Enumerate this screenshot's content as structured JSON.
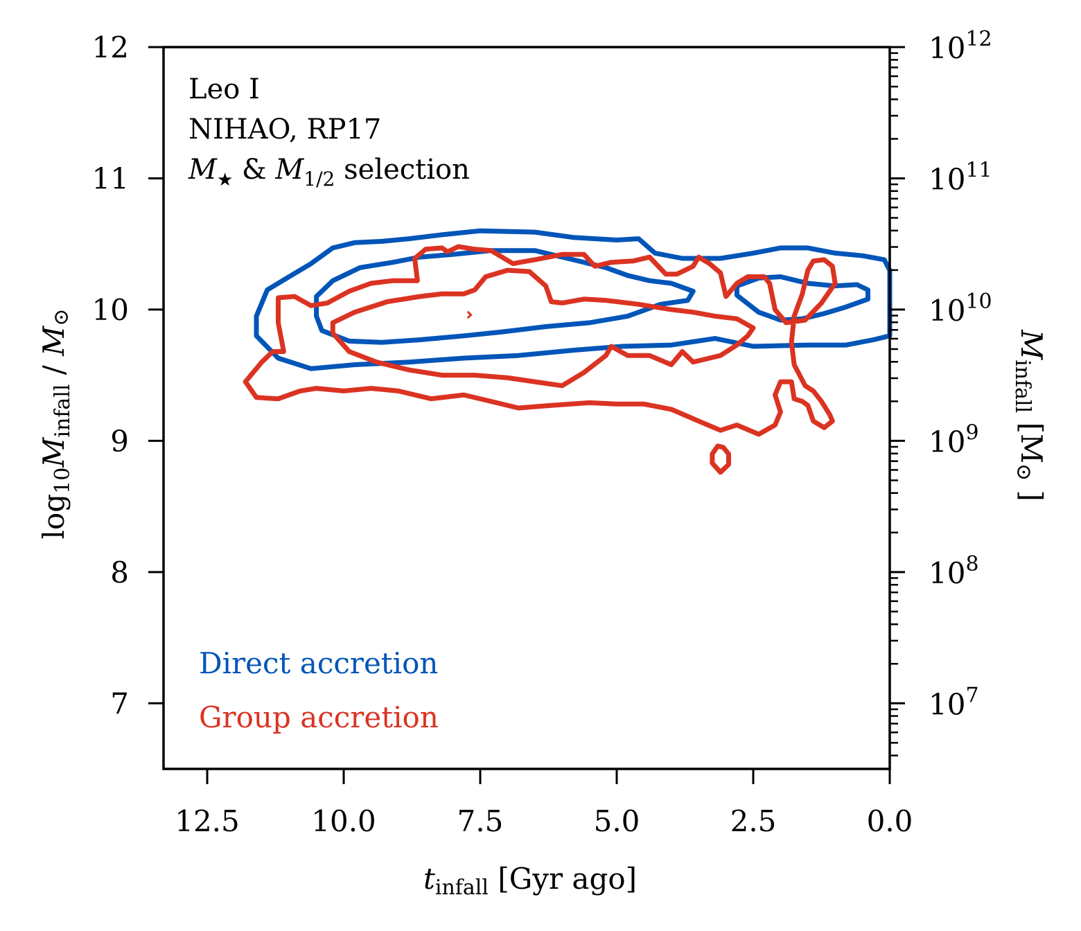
{
  "chart_data": {
    "type": "contour",
    "annotation": {
      "lines": [
        "Leo I",
        "NIHAO, RP17"
      ],
      "selection": {
        "m_star": "M",
        "star_sub": "★",
        "amp": " & ",
        "m_half": "M",
        "half_sub": "1/2",
        "rest": " selection"
      }
    },
    "xaxis": {
      "label_var": "t",
      "label_sub": "infall",
      "label_rest": " [Gyr ago]",
      "range": [
        13.3,
        0.0
      ],
      "reversed": true,
      "ticks": [
        12.5,
        10.0,
        7.5,
        5.0,
        2.5,
        0.0
      ],
      "tick_labels": [
        "12.5",
        "10.0",
        "7.5",
        "5.0",
        "2.5",
        "0.0"
      ]
    },
    "yaxis_left": {
      "label_log": "log",
      "label_log_sub": "10",
      "label_var": "M",
      "label_var_sub": "infall",
      "label_sep": " / ",
      "label_unit": "M",
      "label_unit_sym": "⊙",
      "range": [
        6.5,
        12.0
      ],
      "ticks": [
        7,
        8,
        9,
        10,
        11,
        12
      ],
      "tick_labels": [
        "7",
        "8",
        "9",
        "10",
        "11",
        "12"
      ]
    },
    "yaxis_right": {
      "label_var": "M",
      "label_sub": "infall",
      "label_unit": " [M",
      "label_unit_sym": "⊙",
      "label_close": " ]",
      "scale": "log",
      "ticks": [
        7,
        8,
        9,
        10,
        11,
        12
      ],
      "tick_base": "10",
      "tick_exponents": [
        "7",
        "8",
        "9",
        "10",
        "11",
        "12"
      ]
    },
    "series": [
      {
        "name": "Direct accretion",
        "color": "#0055b8",
        "contours": [
          [
            [
              11.6,
              9.8
            ],
            [
              11.6,
              9.95
            ],
            [
              11.4,
              10.15
            ],
            [
              11.0,
              10.25
            ],
            [
              10.6,
              10.35
            ],
            [
              10.2,
              10.47
            ],
            [
              9.8,
              10.51
            ],
            [
              9.3,
              10.52
            ],
            [
              8.8,
              10.54
            ],
            [
              8.2,
              10.57
            ],
            [
              7.5,
              10.6
            ],
            [
              6.5,
              10.59
            ],
            [
              5.8,
              10.55
            ],
            [
              5.0,
              10.53
            ],
            [
              4.6,
              10.54
            ],
            [
              4.3,
              10.43
            ],
            [
              3.8,
              10.39
            ],
            [
              3.1,
              10.39
            ],
            [
              2.5,
              10.43
            ],
            [
              2.0,
              10.47
            ],
            [
              1.5,
              10.47
            ],
            [
              1.0,
              10.43
            ],
            [
              0.5,
              10.41
            ],
            [
              0.1,
              10.38
            ],
            [
              0.0,
              10.3
            ],
            [
              0.0,
              9.8
            ],
            [
              0.3,
              9.77
            ],
            [
              0.8,
              9.73
            ],
            [
              1.5,
              9.73
            ],
            [
              2.5,
              9.72
            ],
            [
              3.2,
              9.78
            ],
            [
              4.0,
              9.73
            ],
            [
              4.9,
              9.72
            ],
            [
              5.8,
              9.69
            ],
            [
              6.8,
              9.65
            ],
            [
              7.8,
              9.63
            ],
            [
              8.8,
              9.6
            ],
            [
              9.8,
              9.58
            ],
            [
              10.6,
              9.55
            ],
            [
              11.2,
              9.63
            ],
            [
              11.6,
              9.8
            ]
          ],
          [
            [
              10.5,
              9.95
            ],
            [
              10.5,
              10.1
            ],
            [
              10.2,
              10.22
            ],
            [
              9.7,
              10.32
            ],
            [
              9.1,
              10.36
            ],
            [
              8.6,
              10.4
            ],
            [
              8.0,
              10.42
            ],
            [
              7.3,
              10.45
            ],
            [
              6.5,
              10.45
            ],
            [
              5.8,
              10.38
            ],
            [
              5.2,
              10.32
            ],
            [
              4.8,
              10.26
            ],
            [
              4.4,
              10.22
            ],
            [
              4.0,
              10.2
            ],
            [
              3.6,
              10.14
            ],
            [
              3.7,
              10.07
            ],
            [
              4.2,
              10.04
            ],
            [
              4.8,
              9.95
            ],
            [
              5.5,
              9.9
            ],
            [
              6.3,
              9.87
            ],
            [
              7.1,
              9.83
            ],
            [
              7.8,
              9.8
            ],
            [
              8.6,
              9.77
            ],
            [
              9.3,
              9.75
            ],
            [
              9.9,
              9.76
            ],
            [
              10.4,
              9.84
            ],
            [
              10.5,
              9.95
            ]
          ],
          [
            [
              2.8,
              10.11
            ],
            [
              2.8,
              10.18
            ],
            [
              2.4,
              10.24
            ],
            [
              2.0,
              10.25
            ],
            [
              1.5,
              10.2
            ],
            [
              1.0,
              10.18
            ],
            [
              0.6,
              10.19
            ],
            [
              0.4,
              10.15
            ],
            [
              0.4,
              10.08
            ],
            [
              0.8,
              10.02
            ],
            [
              1.2,
              9.97
            ],
            [
              1.6,
              9.93
            ],
            [
              2.0,
              9.92
            ],
            [
              2.4,
              9.98
            ],
            [
              2.8,
              10.11
            ]
          ]
        ]
      },
      {
        "name": "Group accretion",
        "color": "#db3322",
        "contours": [
          [
            [
              11.8,
              9.45
            ],
            [
              11.6,
              9.33
            ],
            [
              11.2,
              9.32
            ],
            [
              10.8,
              9.38
            ],
            [
              10.5,
              9.4
            ],
            [
              10.0,
              9.38
            ],
            [
              9.5,
              9.4
            ],
            [
              9.0,
              9.38
            ],
            [
              8.4,
              9.32
            ],
            [
              7.8,
              9.35
            ],
            [
              7.3,
              9.3
            ],
            [
              6.8,
              9.25
            ],
            [
              6.2,
              9.27
            ],
            [
              5.5,
              9.29
            ],
            [
              5.0,
              9.28
            ],
            [
              4.5,
              9.28
            ],
            [
              4.0,
              9.24
            ],
            [
              3.5,
              9.15
            ],
            [
              3.1,
              9.08
            ],
            [
              2.8,
              9.12
            ],
            [
              2.4,
              9.05
            ],
            [
              2.1,
              9.12
            ],
            [
              2.0,
              9.22
            ],
            [
              2.1,
              9.35
            ],
            [
              2.0,
              9.45
            ],
            [
              1.8,
              9.45
            ],
            [
              1.75,
              9.32
            ],
            [
              1.6,
              9.3
            ],
            [
              1.5,
              9.27
            ],
            [
              1.4,
              9.15
            ],
            [
              1.2,
              9.1
            ],
            [
              1.05,
              9.15
            ],
            [
              1.1,
              9.2
            ],
            [
              1.25,
              9.3
            ],
            [
              1.4,
              9.38
            ],
            [
              1.55,
              9.42
            ],
            [
              1.75,
              9.58
            ],
            [
              1.8,
              9.75
            ],
            [
              1.75,
              9.95
            ],
            [
              1.6,
              10.12
            ],
            [
              1.5,
              10.3
            ],
            [
              1.4,
              10.37
            ],
            [
              1.2,
              10.38
            ],
            [
              1.05,
              10.33
            ],
            [
              1.0,
              10.2
            ],
            [
              1.25,
              10.05
            ],
            [
              1.55,
              9.92
            ],
            [
              1.9,
              9.9
            ],
            [
              2.1,
              10.0
            ],
            [
              2.2,
              10.2
            ],
            [
              2.3,
              10.25
            ],
            [
              2.6,
              10.25
            ],
            [
              2.8,
              10.2
            ],
            [
              3.0,
              10.1
            ],
            [
              3.1,
              10.28
            ],
            [
              3.3,
              10.35
            ],
            [
              3.5,
              10.4
            ],
            [
              3.6,
              10.33
            ],
            [
              3.9,
              10.27
            ],
            [
              4.1,
              10.27
            ],
            [
              4.4,
              10.4
            ],
            [
              4.7,
              10.37
            ],
            [
              5.1,
              10.36
            ],
            [
              5.4,
              10.33
            ],
            [
              5.6,
              10.42
            ],
            [
              6.0,
              10.42
            ],
            [
              6.5,
              10.38
            ],
            [
              6.9,
              10.35
            ],
            [
              7.3,
              10.45
            ],
            [
              7.6,
              10.46
            ],
            [
              7.9,
              10.48
            ],
            [
              8.1,
              10.44
            ],
            [
              8.2,
              10.47
            ],
            [
              8.5,
              10.46
            ],
            [
              8.7,
              10.39
            ],
            [
              8.65,
              10.22
            ],
            [
              9.1,
              10.22
            ],
            [
              9.5,
              10.2
            ],
            [
              9.9,
              10.14
            ],
            [
              10.3,
              10.05
            ],
            [
              10.6,
              10.03
            ],
            [
              10.9,
              10.1
            ],
            [
              11.2,
              10.09
            ],
            [
              11.2,
              9.9
            ],
            [
              11.1,
              9.68
            ],
            [
              11.3,
              9.68
            ],
            [
              11.5,
              9.6
            ],
            [
              11.8,
              9.45
            ]
          ],
          [
            [
              10.2,
              9.82
            ],
            [
              10.2,
              9.9
            ],
            [
              9.8,
              9.98
            ],
            [
              9.2,
              10.06
            ],
            [
              8.6,
              10.1
            ],
            [
              8.2,
              10.12
            ],
            [
              7.8,
              10.12
            ],
            [
              7.6,
              10.15
            ],
            [
              7.4,
              10.25
            ],
            [
              7.0,
              10.3
            ],
            [
              6.6,
              10.29
            ],
            [
              6.3,
              10.18
            ],
            [
              6.2,
              10.06
            ],
            [
              6.0,
              10.05
            ],
            [
              5.6,
              10.08
            ],
            [
              5.2,
              10.07
            ],
            [
              4.6,
              10.04
            ],
            [
              4.0,
              10.0
            ],
            [
              3.6,
              9.98
            ],
            [
              3.2,
              9.95
            ],
            [
              2.8,
              9.93
            ],
            [
              2.5,
              9.86
            ],
            [
              2.6,
              9.8
            ],
            [
              2.8,
              9.73
            ],
            [
              3.1,
              9.65
            ],
            [
              3.6,
              9.6
            ],
            [
              3.8,
              9.68
            ],
            [
              4.0,
              9.58
            ],
            [
              4.4,
              9.65
            ],
            [
              4.8,
              9.65
            ],
            [
              5.1,
              9.72
            ],
            [
              5.2,
              9.65
            ],
            [
              5.6,
              9.52
            ],
            [
              6.0,
              9.42
            ],
            [
              6.5,
              9.45
            ],
            [
              7.0,
              9.48
            ],
            [
              7.6,
              9.5
            ],
            [
              8.2,
              9.5
            ],
            [
              8.8,
              9.54
            ],
            [
              9.4,
              9.6
            ],
            [
              9.9,
              9.68
            ],
            [
              10.2,
              9.82
            ]
          ],
          [
            [
              3.05,
              8.95
            ],
            [
              3.15,
              8.96
            ],
            [
              3.25,
              8.9
            ],
            [
              3.25,
              8.83
            ],
            [
              3.1,
              8.76
            ],
            [
              2.95,
              8.82
            ],
            [
              2.95,
              8.9
            ],
            [
              3.05,
              8.95
            ]
          ],
          [
            [
              7.72,
              9.98
            ],
            [
              7.67,
              9.96
            ],
            [
              7.72,
              9.94
            ]
          ]
        ]
      }
    ],
    "legend": [
      {
        "label": "Direct accretion",
        "color": "#0055b8"
      },
      {
        "label": "Group accretion",
        "color": "#db3322"
      }
    ]
  }
}
